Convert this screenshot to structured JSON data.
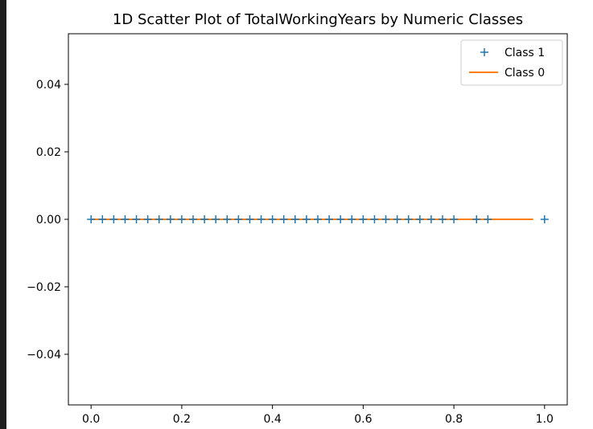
{
  "chart_data": {
    "type": "scatter",
    "title": "1D Scatter Plot of TotalWorkingYears by Numeric Classes",
    "xlabel": "",
    "ylabel": "",
    "xlim": [
      -0.05,
      1.05
    ],
    "ylim": [
      -0.055,
      0.055
    ],
    "x_ticks": [
      "0.0",
      "0.2",
      "0.4",
      "0.6",
      "0.8",
      "1.0"
    ],
    "x_tick_values": [
      0.0,
      0.2,
      0.4,
      0.6,
      0.8,
      1.0
    ],
    "y_ticks": [
      "0.04",
      "0.02",
      "0.00",
      "−0.02",
      "−0.04"
    ],
    "y_tick_values": [
      0.04,
      0.02,
      0.0,
      -0.02,
      -0.04
    ],
    "legend_position": "top-right",
    "grid": false,
    "series": [
      {
        "name": "Class 1",
        "marker": "+",
        "color": "#1f77b4",
        "x": [
          0.0,
          0.025,
          0.05,
          0.075,
          0.1,
          0.125,
          0.15,
          0.175,
          0.2,
          0.225,
          0.25,
          0.275,
          0.3,
          0.325,
          0.35,
          0.375,
          0.4,
          0.425,
          0.45,
          0.475,
          0.5,
          0.525,
          0.55,
          0.575,
          0.6,
          0.625,
          0.65,
          0.675,
          0.7,
          0.725,
          0.75,
          0.775,
          0.8,
          0.85,
          0.875,
          1.0
        ],
        "y": [
          0,
          0,
          0,
          0,
          0,
          0,
          0,
          0,
          0,
          0,
          0,
          0,
          0,
          0,
          0,
          0,
          0,
          0,
          0,
          0,
          0,
          0,
          0,
          0,
          0,
          0,
          0,
          0,
          0,
          0,
          0,
          0,
          0,
          0,
          0,
          0
        ]
      },
      {
        "name": "Class 0",
        "marker": "line",
        "color": "#ff7f0e",
        "x": [
          0.0,
          0.975
        ],
        "y": [
          0,
          0
        ]
      }
    ]
  }
}
